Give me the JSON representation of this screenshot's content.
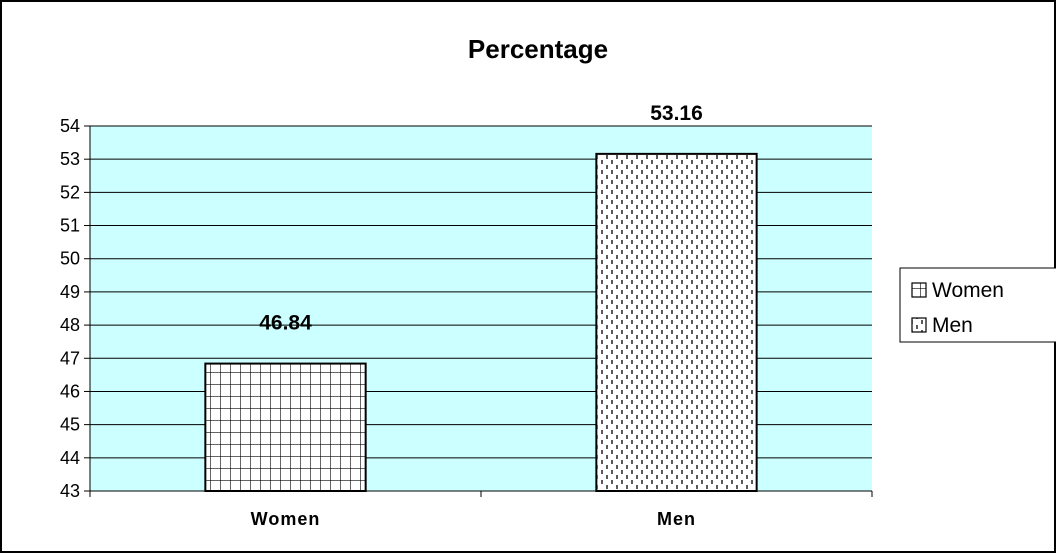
{
  "chart_data": {
    "type": "bar",
    "title": "Percentage",
    "categories": [
      "Women",
      "Men"
    ],
    "values": [
      46.84,
      53.16
    ],
    "data_labels": [
      "46.84",
      "53.16"
    ],
    "ylim": [
      43,
      54
    ],
    "yticks": [
      "43",
      "44",
      "45",
      "46",
      "47",
      "48",
      "49",
      "50",
      "51",
      "52",
      "53",
      "54"
    ],
    "xlabel": "",
    "ylabel": "",
    "grid": true,
    "legend": {
      "placement": "right",
      "entries": [
        "Women",
        "Men"
      ]
    },
    "colors": {
      "plot_background": "#CCFFFF",
      "bar_fill": "#FFFFFF",
      "bar_pattern_women": "grid",
      "bar_pattern_men": "dotted-vertical"
    }
  }
}
